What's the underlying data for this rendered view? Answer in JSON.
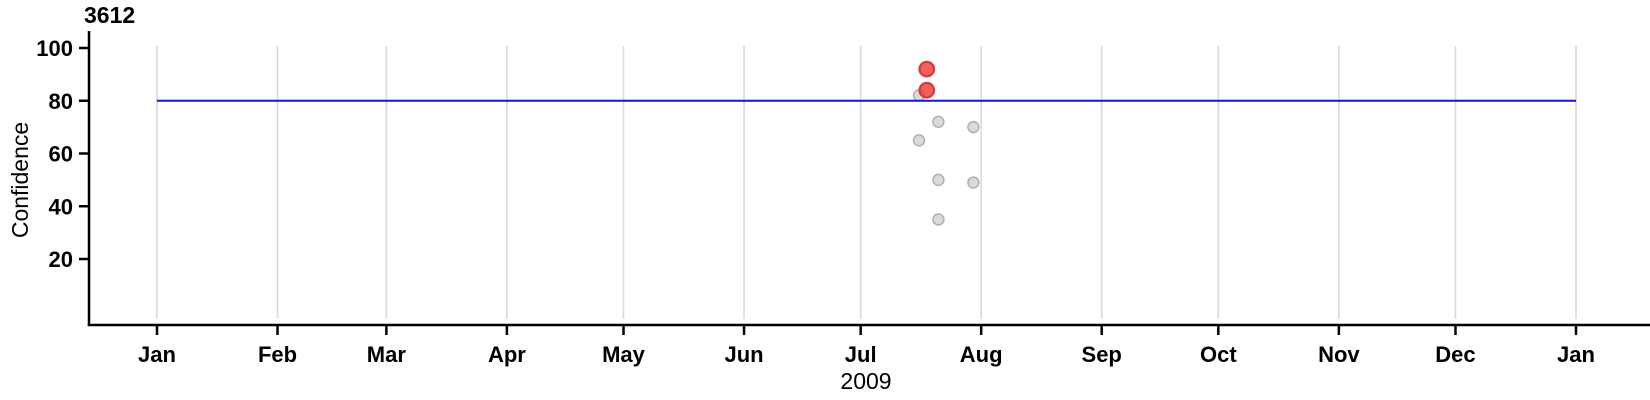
{
  "chart": {
    "title": "3612",
    "y_axis_title": "Confidence",
    "x_axis_title": "2009"
  },
  "colors": {
    "threshold_line": "#1414dd",
    "red_point_fill": "#ee4540",
    "red_point_stroke": "#d32f2f",
    "gray_point_fill": "#d4d4d4",
    "gray_point_stroke": "#a6a6a6",
    "gridline": "#d9d9d9",
    "axis": "#000000"
  },
  "chart_data": {
    "type": "scatter",
    "title": "3612",
    "xlabel": "2009",
    "ylabel": "Confidence",
    "x_axis": {
      "type": "date",
      "range": [
        "2009-01-01",
        "2010-01-01"
      ],
      "tick_dates": [
        "2009-01-01",
        "2009-02-01",
        "2009-03-01",
        "2009-04-01",
        "2009-05-01",
        "2009-06-01",
        "2009-07-01",
        "2009-08-01",
        "2009-09-01",
        "2009-10-01",
        "2009-11-01",
        "2009-12-01",
        "2010-01-01"
      ],
      "tick_labels": [
        "Jan",
        "Feb",
        "Mar",
        "Apr",
        "May",
        "Jun",
        "Jul",
        "Aug",
        "Sep",
        "Oct",
        "Nov",
        "Dec",
        "Jan"
      ]
    },
    "y_axis": {
      "ticks": [
        20,
        40,
        60,
        80,
        100
      ],
      "ylim": [
        -5,
        106
      ]
    },
    "grid": "vertical-monthly",
    "legend": "none",
    "threshold_line": {
      "y": 80,
      "x_start": "2009-01-01",
      "x_end": "2010-01-01",
      "color_key": "threshold_line"
    },
    "series": [
      {
        "name": "highlighted",
        "color_key": "red",
        "marker_radius": 7.3,
        "points": [
          {
            "date": "2009-07-18",
            "confidence": 92
          },
          {
            "date": "2009-07-18",
            "confidence": 84
          }
        ]
      },
      {
        "name": "other",
        "color_key": "gray",
        "marker_radius": 5.5,
        "points": [
          {
            "date": "2009-07-16",
            "confidence": 82
          },
          {
            "date": "2009-07-21",
            "confidence": 72
          },
          {
            "date": "2009-07-30",
            "confidence": 70
          },
          {
            "date": "2009-07-16",
            "confidence": 65
          },
          {
            "date": "2009-07-21",
            "confidence": 50
          },
          {
            "date": "2009-07-30",
            "confidence": 49
          },
          {
            "date": "2009-07-21",
            "confidence": 35
          }
        ]
      }
    ]
  }
}
